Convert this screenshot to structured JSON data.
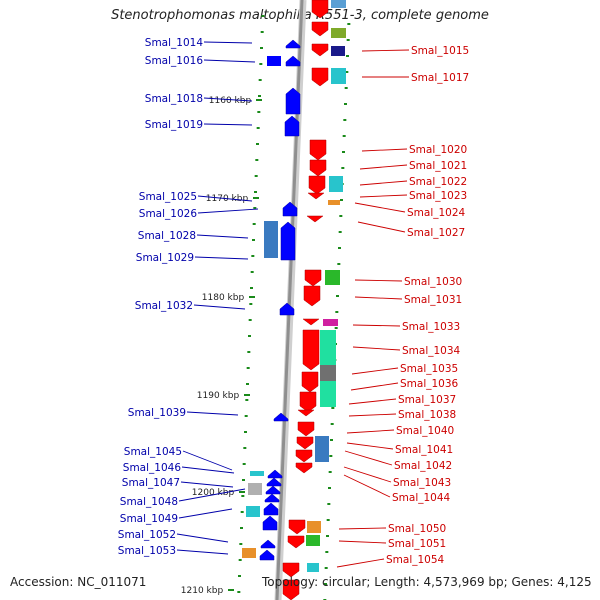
{
  "title": "Stenotrophomonas maltophilia R551-3, complete genome",
  "accession_text": "Accession: NC_011071",
  "topology_text": "Topology: circular; Length: 4,573,969 bp; Genes: 4,125",
  "colors": {
    "left_label": "#0000aa",
    "right_label": "#cc0000",
    "forward_gene": "#ff0000",
    "reverse_gene": "#0000ff",
    "backbone": "#999999",
    "tick": "#1a8a1a"
  },
  "kbp_ticks": [
    "1160 kbp",
    "1170 kbp",
    "1180 kbp",
    "1190 kbp",
    "1200 kbp",
    "1210 kbp"
  ],
  "left_labels": [
    "Smal_1014",
    "Smal_1016",
    "Smal_1018",
    "Smal_1019",
    "Smal_1025",
    "Smal_1026",
    "Smal_1028",
    "Smal_1029",
    "Smal_1032",
    "Smal_1039",
    "Smal_1045",
    "Smal_1046",
    "Smal_1047",
    "Smal_1048",
    "Smal_1049",
    "Smal_1052",
    "Smal_1053"
  ],
  "right_labels": [
    "Smal_1015",
    "Smal_1017",
    "Smal_1020",
    "Smal_1021",
    "Smal_1022",
    "Smal_1023",
    "Smal_1024",
    "Smal_1027",
    "Smal_1030",
    "Smal_1031",
    "Smal_1033",
    "Smal_1034",
    "Smal_1035",
    "Smal_1036",
    "Smal_1037",
    "Smal_1038",
    "Smal_1040",
    "Smal_1041",
    "Smal_1042",
    "Smal_1043",
    "Smal_1044",
    "Smal_1050",
    "Smal_1051",
    "Smal_1054"
  ]
}
